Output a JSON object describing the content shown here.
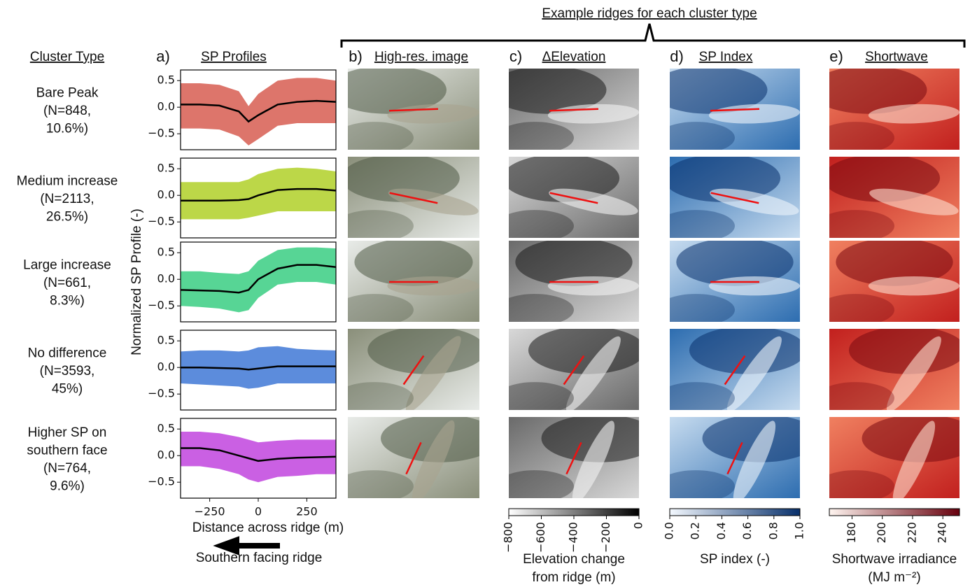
{
  "header": {
    "title": "Example ridges for each cluster type"
  },
  "row_header": "Cluster Type",
  "panel_titles": [
    {
      "letter": "a)",
      "title": "SP Profiles"
    },
    {
      "letter": "b)",
      "title": "High-res. image"
    },
    {
      "letter": "c)",
      "title": "ΔElevation"
    },
    {
      "letter": "d)",
      "title": "SP Index"
    },
    {
      "letter": "e)",
      "title": "Shortwave"
    }
  ],
  "clusters": [
    {
      "lines": [
        "Bare Peak",
        "(N=848,",
        "10.6%)"
      ]
    },
    {
      "lines": [
        "Medium increase",
        "(N=2113,",
        "26.5%)"
      ]
    },
    {
      "lines": [
        "Large increase",
        "(N=661,",
        "8.3%)"
      ]
    },
    {
      "lines": [
        "No difference",
        "(N=3593,",
        "45%)"
      ]
    },
    {
      "lines": [
        "Higher SP on",
        "southern face",
        "(N=764,",
        "9.6%)"
      ]
    }
  ],
  "arrow_label": "Southern facing ridge",
  "chart_data": [
    {
      "type": "line",
      "x": [
        -400,
        -300,
        -200,
        -100,
        -50,
        0,
        100,
        200,
        300,
        400
      ],
      "series": [
        {
          "color": "#000000",
          "values": [
            0.05,
            0.05,
            0.03,
            -0.08,
            -0.27,
            -0.15,
            0.05,
            0.1,
            0.12,
            0.1
          ]
        }
      ],
      "band": {
        "color": "#d9665b",
        "upper": [
          0.45,
          0.45,
          0.42,
          0.3,
          0.02,
          0.25,
          0.5,
          0.55,
          0.55,
          0.5
        ],
        "lower": [
          -0.4,
          -0.4,
          -0.42,
          -0.55,
          -0.72,
          -0.6,
          -0.35,
          -0.3,
          -0.3,
          -0.3
        ]
      },
      "xlim": [
        -400,
        400
      ],
      "ylim": [
        -0.8,
        0.7
      ],
      "yticks": [
        {
          "value": -0.5,
          "label": "−0.5"
        },
        {
          "value": 0,
          "label": "0.0"
        },
        0.5
      ]
    },
    {
      "type": "line",
      "x": [
        -400,
        -300,
        -200,
        -100,
        -50,
        0,
        100,
        200,
        300,
        400
      ],
      "series": [
        {
          "color": "#000000",
          "values": [
            -0.1,
            -0.1,
            -0.1,
            -0.09,
            -0.07,
            0.0,
            0.1,
            0.12,
            0.12,
            0.09
          ]
        }
      ],
      "band": {
        "color": "#b5d334",
        "upper": [
          0.25,
          0.25,
          0.25,
          0.25,
          0.3,
          0.4,
          0.5,
          0.52,
          0.5,
          0.45
        ],
        "lower": [
          -0.45,
          -0.45,
          -0.45,
          -0.45,
          -0.42,
          -0.38,
          -0.3,
          -0.3,
          -0.3,
          -0.3
        ]
      },
      "xlim": [
        -400,
        400
      ],
      "ylim": [
        -0.8,
        0.7
      ],
      "yticks": [
        {
          "value": -0.5,
          "label": "−0.5"
        },
        {
          "value": 0,
          "label": "0.0"
        },
        0.5
      ]
    },
    {
      "type": "line",
      "x": [
        -400,
        -300,
        -200,
        -100,
        -50,
        0,
        100,
        200,
        300,
        400
      ],
      "series": [
        {
          "color": "#000000",
          "values": [
            -0.2,
            -0.21,
            -0.22,
            -0.25,
            -0.2,
            0.0,
            0.2,
            0.27,
            0.27,
            0.23
          ]
        }
      ],
      "band": {
        "color": "#45d08a",
        "upper": [
          0.15,
          0.15,
          0.12,
          0.1,
          0.15,
          0.35,
          0.55,
          0.6,
          0.6,
          0.58
        ],
        "lower": [
          -0.5,
          -0.52,
          -0.55,
          -0.62,
          -0.58,
          -0.35,
          -0.1,
          -0.05,
          -0.05,
          -0.1
        ]
      },
      "xlim": [
        -400,
        400
      ],
      "ylim": [
        -0.8,
        0.7
      ],
      "yticks": [
        {
          "value": -0.5,
          "label": "−0.5"
        },
        {
          "value": 0,
          "label": "0.0"
        },
        0.5
      ],
      "ylabel": "Normalized SP Profile (-)"
    },
    {
      "type": "line",
      "x": [
        -400,
        -300,
        -200,
        -100,
        -50,
        0,
        100,
        200,
        300,
        400
      ],
      "series": [
        {
          "color": "#000000",
          "values": [
            0.0,
            0.0,
            -0.01,
            -0.02,
            -0.04,
            -0.02,
            0.02,
            0.02,
            0.02,
            0.02
          ]
        }
      ],
      "band": {
        "color": "#4a7fd8",
        "upper": [
          0.3,
          0.32,
          0.32,
          0.3,
          0.32,
          0.38,
          0.4,
          0.35,
          0.33,
          0.32
        ],
        "lower": [
          -0.3,
          -0.32,
          -0.34,
          -0.36,
          -0.4,
          -0.38,
          -0.3,
          -0.3,
          -0.3,
          -0.3
        ]
      },
      "xlim": [
        -400,
        400
      ],
      "ylim": [
        -0.8,
        0.7
      ],
      "yticks": [
        {
          "value": -0.5,
          "label": "−0.5"
        },
        {
          "value": 0,
          "label": "0.0"
        },
        0.5
      ]
    },
    {
      "type": "line",
      "x": [
        -400,
        -300,
        -200,
        -100,
        -50,
        0,
        100,
        200,
        300,
        400
      ],
      "series": [
        {
          "color": "#000000",
          "values": [
            0.14,
            0.14,
            0.1,
            0.0,
            -0.05,
            -0.1,
            -0.06,
            -0.04,
            -0.03,
            -0.02
          ]
        }
      ],
      "band": {
        "color": "#c44fe0",
        "upper": [
          0.45,
          0.45,
          0.42,
          0.35,
          0.3,
          0.25,
          0.28,
          0.3,
          0.3,
          0.3
        ],
        "lower": [
          -0.2,
          -0.2,
          -0.25,
          -0.35,
          -0.45,
          -0.5,
          -0.4,
          -0.38,
          -0.35,
          -0.35
        ]
      },
      "xlim": [
        -400,
        400
      ],
      "ylim": [
        -0.8,
        0.7
      ],
      "yticks": [
        {
          "value": -0.5,
          "label": "−0.5"
        },
        {
          "value": 0,
          "label": "0.0"
        },
        0.5
      ],
      "xticks": [
        {
          "value": -250,
          "label": "−250"
        },
        0,
        250
      ],
      "xlabel": "Distance across ridge (m)"
    }
  ],
  "colorbars": [
    {
      "type": "colorbar",
      "colors": [
        "#ffffff",
        "#000000"
      ],
      "xlim": [
        -800,
        0
      ],
      "xticks": [
        {
          "value": -800,
          "label": "−800"
        },
        {
          "value": -600,
          "label": "−600"
        },
        {
          "value": -400,
          "label": "−400"
        },
        {
          "value": -200,
          "label": "−200"
        },
        0
      ],
      "label": [
        "Elevation change",
        "from ridge (m)"
      ]
    },
    {
      "type": "colorbar",
      "colors": [
        "#f4f9ff",
        "#08306b"
      ],
      "xlim": [
        0,
        1
      ],
      "xticks": [
        {
          "value": 0,
          "label": "0.0"
        },
        0.2,
        0.4,
        0.6,
        0.8,
        {
          "value": 1,
          "label": "1.0"
        }
      ],
      "label": [
        "SP index (-)"
      ]
    },
    {
      "type": "colorbar",
      "colors": [
        "#fff5f0",
        "#67000d"
      ],
      "xlim": [
        165,
        251
      ],
      "xticks": [
        180,
        200,
        220,
        240
      ],
      "label": [
        "Shortwave irradiance",
        "(MJ m⁻²)"
      ]
    }
  ]
}
